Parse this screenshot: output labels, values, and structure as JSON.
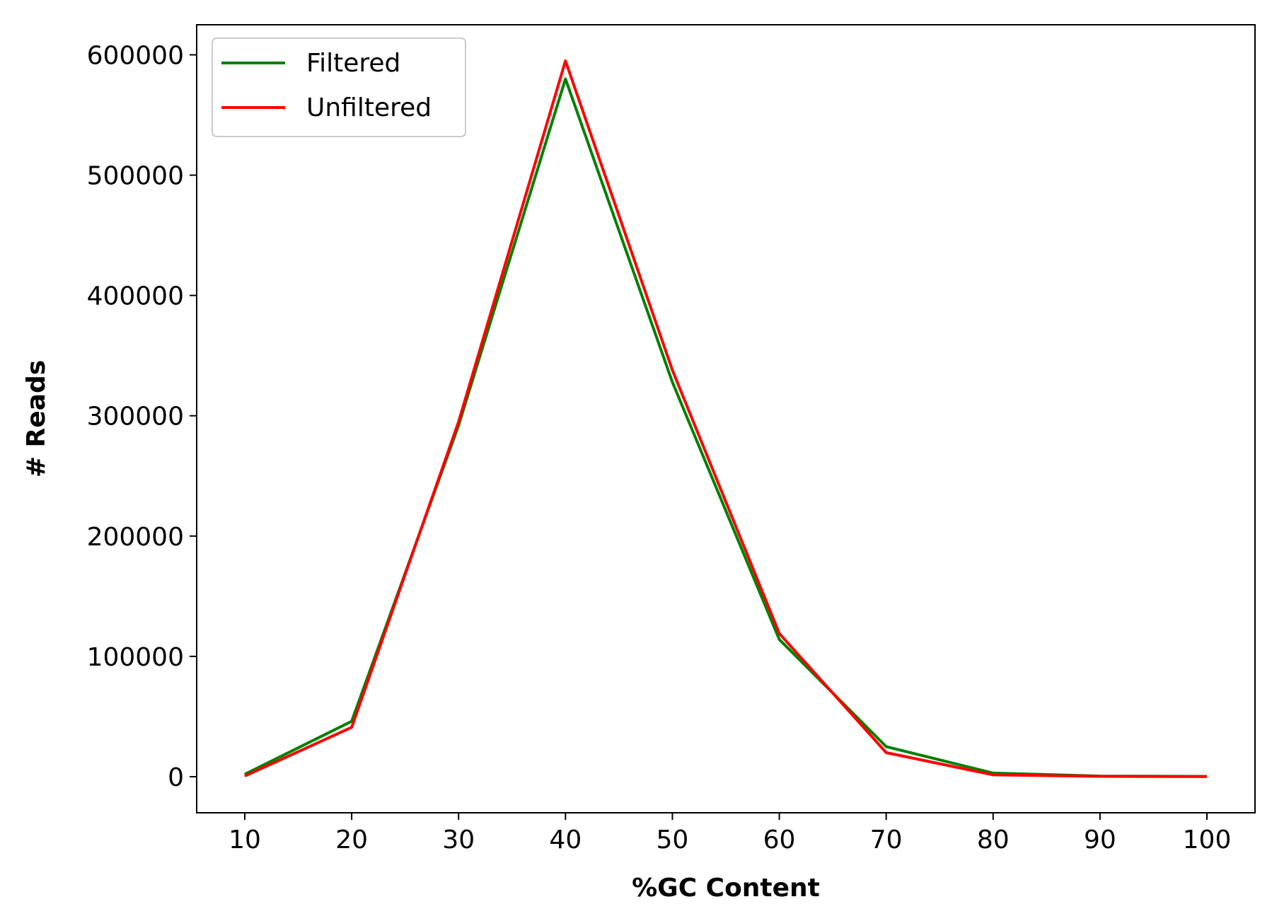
{
  "chart_data": {
    "type": "line",
    "title": "",
    "xlabel": "%GC Content",
    "ylabel": "# Reads",
    "x": [
      10,
      20,
      30,
      40,
      50,
      60,
      70,
      80,
      90,
      100
    ],
    "series": [
      {
        "name": "Filtered",
        "color": "#008000",
        "values": [
          2000,
          46000,
          292000,
          580000,
          328000,
          114000,
          25000,
          3000,
          500,
          200
        ]
      },
      {
        "name": "Unfiltered",
        "color": "#ff0000",
        "values": [
          500,
          41000,
          295000,
          595000,
          338000,
          119000,
          20000,
          1500,
          300,
          100
        ]
      }
    ],
    "xticks": [
      "10",
      "20",
      "30",
      "40",
      "50",
      "60",
      "70",
      "80",
      "90",
      "100"
    ],
    "yticks": [
      "0",
      "100000",
      "200000",
      "300000",
      "400000",
      "500000",
      "600000"
    ],
    "xlim": [
      5.5,
      104.5
    ],
    "ylim": [
      -30000,
      625000
    ],
    "grid": false,
    "legend_position": "top-left"
  }
}
